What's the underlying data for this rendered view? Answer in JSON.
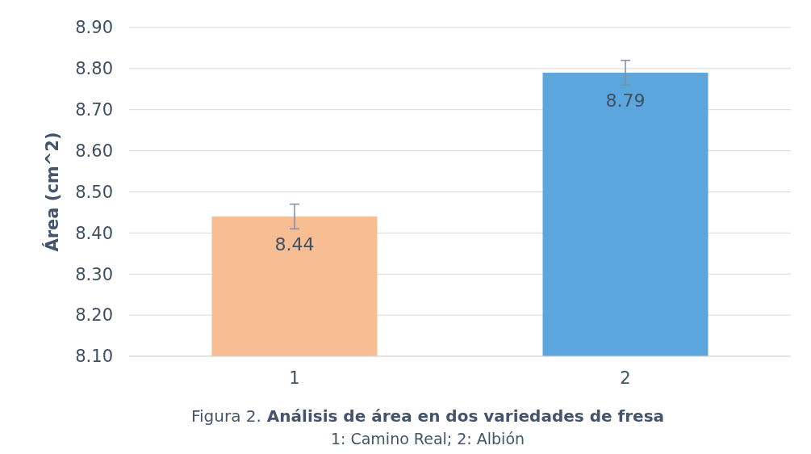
{
  "chart_data": {
    "type": "bar",
    "title": "Figura 2. Análisis de área en dos variedades de fresa",
    "subtitle": "1: Camino Real; 2: Albión",
    "ylabel": "Área (cm^2)",
    "categories": [
      "1",
      "2"
    ],
    "values": [
      8.44,
      8.79
    ],
    "colors": [
      "#f7be94",
      "#5ba6dd"
    ],
    "errors": [
      0.03,
      0.03
    ],
    "ylim": [
      8.1,
      8.9
    ],
    "yticks": [
      {
        "value": 8.1,
        "label": "8.10"
      },
      {
        "value": 8.2,
        "label": "8.20"
      },
      {
        "value": 8.3,
        "label": "8.30"
      },
      {
        "value": 8.4,
        "label": "8.40"
      },
      {
        "value": 8.5,
        "label": "8.50"
      },
      {
        "value": 8.6,
        "label": "8.60"
      },
      {
        "value": 8.7,
        "label": "8.70"
      },
      {
        "value": 8.8,
        "label": "8.80"
      },
      {
        "value": 8.9,
        "label": "8.90"
      }
    ],
    "grid": "y",
    "data_labels": true
  }
}
